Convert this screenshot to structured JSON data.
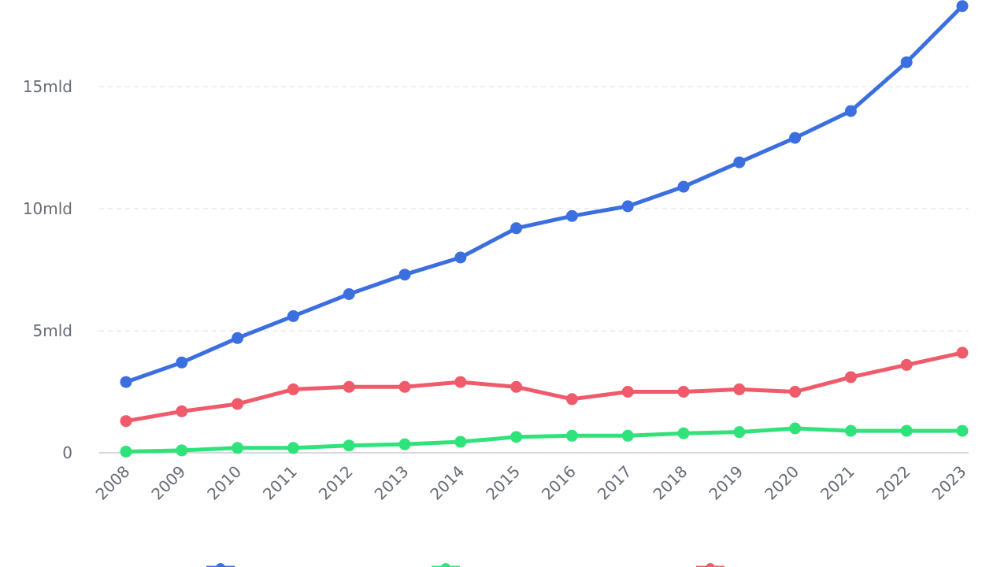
{
  "chart_data": {
    "type": "line",
    "title": "",
    "xlabel": "",
    "ylabel": "",
    "categories": [
      "2008",
      "2009",
      "2010",
      "2011",
      "2012",
      "2013",
      "2014",
      "2015",
      "2016",
      "2017",
      "2018",
      "2019",
      "2020",
      "2021",
      "2022",
      "2023"
    ],
    "y_ticks": [
      {
        "value": 0,
        "label": "0"
      },
      {
        "value": 5,
        "label": "5mld"
      },
      {
        "value": 10,
        "label": "10mld"
      },
      {
        "value": 15,
        "label": "15mld"
      }
    ],
    "ylim": [
      0,
      18.5
    ],
    "grid": true,
    "legend_position": "bottom",
    "series": [
      {
        "key": "blue",
        "color": "#3b6fe0",
        "values": [
          2.9,
          3.7,
          4.7,
          5.6,
          6.5,
          7.3,
          8.0,
          9.2,
          9.7,
          10.1,
          10.9,
          11.9,
          12.9,
          14.0,
          16.0,
          18.3
        ]
      },
      {
        "key": "red",
        "color": "#ef5b6a",
        "values": [
          1.3,
          1.7,
          2.0,
          2.6,
          2.7,
          2.7,
          2.9,
          2.7,
          2.2,
          2.5,
          2.5,
          2.6,
          2.5,
          3.1,
          3.6,
          4.1
        ]
      },
      {
        "key": "green",
        "color": "#2fe37a",
        "values": [
          0.05,
          0.1,
          0.2,
          0.2,
          0.3,
          0.35,
          0.45,
          0.65,
          0.7,
          0.7,
          0.8,
          0.85,
          1.0,
          0.9,
          0.9,
          0.9
        ]
      }
    ]
  }
}
